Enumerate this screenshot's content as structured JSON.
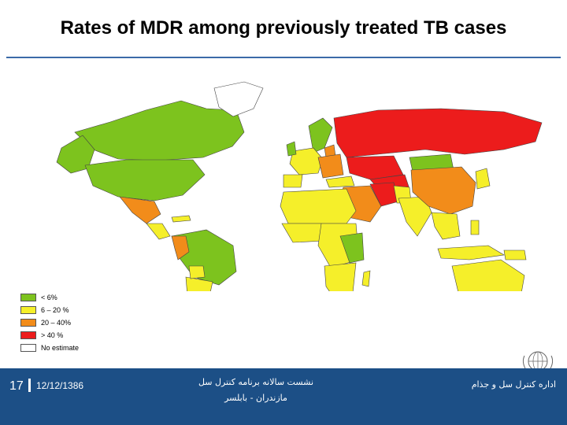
{
  "slide": {
    "title": "Rates of MDR among previously treated TB cases",
    "number": "17",
    "date": "12/12/1386",
    "center_line1": "نشست سالانه برنامه کنترل سل",
    "center_line2": "مازندران - بابلسر",
    "right_text": "اداره کنترل سل و جذام"
  },
  "legend": {
    "items": [
      {
        "label": "< 6%",
        "color": "#7dc31e"
      },
      {
        "label": "6 – 20 %",
        "color": "#f5ef2a"
      },
      {
        "label": "20 – 40%",
        "color": "#f28c1a"
      },
      {
        "label": "> 40 %",
        "color": "#ec1c1c"
      },
      {
        "label": "No estimate",
        "color": "#ffffff"
      }
    ]
  },
  "colors": {
    "low": "#7dc31e",
    "medium": "#f5ef2a",
    "high": "#f28c1a",
    "very_high": "#ec1c1c",
    "none": "#ffffff",
    "footer": "#1c4f86",
    "title_rule": "#3b6aa8"
  },
  "icons": {
    "emblem": "who-emblem-icon"
  }
}
